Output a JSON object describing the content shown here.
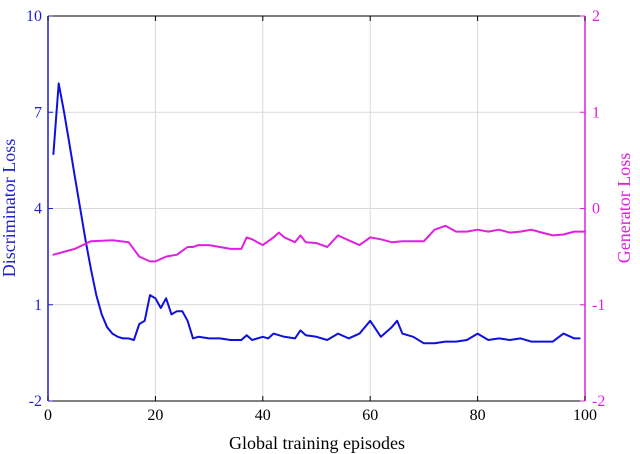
{
  "chart_data": {
    "type": "line",
    "title": "",
    "xlabel": "Global training episodes",
    "ylabel_left": "Discriminator Loss",
    "ylabel_right": "Generator Loss",
    "xlim": [
      0,
      100
    ],
    "ylim_left": [
      -2,
      10
    ],
    "ylim_right": [
      -2,
      2
    ],
    "xticks": [
      0,
      20,
      40,
      60,
      80,
      100
    ],
    "yticks_left": [
      -2,
      1,
      4,
      7,
      10
    ],
    "yticks_right": [
      -2,
      -1,
      0,
      1,
      2
    ],
    "grid": true,
    "colors": {
      "left_axis": "#1f1fd0",
      "right_axis": "#e020e0",
      "series_left": "#1010dd",
      "series_right": "#e020e0",
      "grid": "#d9d9d9",
      "frame": "#000000"
    },
    "series": [
      {
        "axis": "left",
        "x": [
          1,
          2,
          3,
          4,
          5,
          6,
          7,
          8,
          9,
          10,
          11,
          12,
          13,
          14,
          15,
          16,
          17,
          18,
          19,
          20,
          21,
          22,
          23,
          24,
          25,
          26,
          27,
          28,
          30,
          32,
          34,
          35,
          36,
          37,
          38,
          40,
          41,
          42,
          44,
          46,
          47,
          48,
          50,
          52,
          54,
          56,
          58,
          60,
          62,
          64,
          65,
          66,
          68,
          70,
          72,
          74,
          76,
          78,
          80,
          82,
          84,
          86,
          88,
          90,
          92,
          94,
          96,
          98,
          99
        ],
        "values": [
          5.7,
          7.9,
          7.0,
          6.0,
          5.0,
          4.0,
          3.0,
          2.1,
          1.3,
          0.7,
          0.3,
          0.1,
          0.0,
          -0.05,
          -0.05,
          -0.1,
          0.4,
          0.5,
          1.3,
          1.2,
          0.9,
          1.2,
          0.7,
          0.8,
          0.8,
          0.5,
          -0.05,
          0.0,
          -0.05,
          -0.05,
          -0.1,
          -0.1,
          -0.1,
          0.05,
          -0.1,
          0.0,
          -0.05,
          0.1,
          0.0,
          -0.05,
          0.2,
          0.05,
          0.0,
          -0.1,
          0.1,
          -0.05,
          0.1,
          0.5,
          0.0,
          0.3,
          0.5,
          0.1,
          0.0,
          -0.2,
          -0.2,
          -0.15,
          -0.15,
          -0.1,
          0.1,
          -0.1,
          -0.05,
          -0.1,
          -0.05,
          -0.15,
          -0.15,
          -0.15,
          0.1,
          -0.05,
          -0.05
        ]
      },
      {
        "axis": "right",
        "x": [
          1,
          5,
          8,
          12,
          15,
          17,
          19,
          20,
          22,
          24,
          26,
          27,
          28,
          30,
          32,
          34,
          36,
          37,
          38,
          40,
          42,
          43,
          44,
          46,
          47,
          48,
          50,
          52,
          54,
          56,
          58,
          60,
          62,
          64,
          66,
          68,
          70,
          72,
          74,
          76,
          78,
          80,
          82,
          84,
          86,
          88,
          90,
          92,
          94,
          96,
          98,
          100
        ],
        "values": [
          -0.48,
          -0.42,
          -0.34,
          -0.33,
          -0.35,
          -0.5,
          -0.55,
          -0.55,
          -0.5,
          -0.48,
          -0.4,
          -0.4,
          -0.38,
          -0.38,
          -0.4,
          -0.42,
          -0.42,
          -0.3,
          -0.32,
          -0.38,
          -0.3,
          -0.25,
          -0.3,
          -0.35,
          -0.28,
          -0.35,
          -0.36,
          -0.4,
          -0.28,
          -0.33,
          -0.38,
          -0.3,
          -0.32,
          -0.35,
          -0.34,
          -0.34,
          -0.34,
          -0.22,
          -0.18,
          -0.24,
          -0.24,
          -0.22,
          -0.24,
          -0.22,
          -0.25,
          -0.24,
          -0.22,
          -0.25,
          -0.28,
          -0.27,
          -0.24,
          -0.24
        ]
      }
    ]
  }
}
